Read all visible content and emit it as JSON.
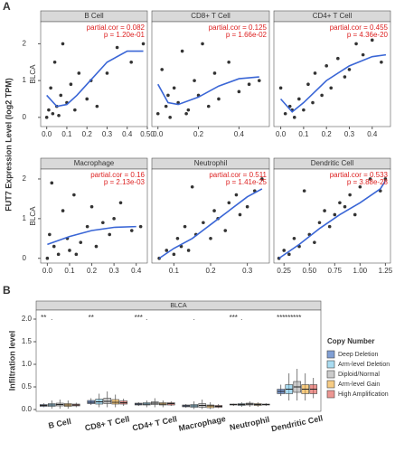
{
  "figure": {
    "panel_a_label": "A",
    "panel_b_label": "B",
    "y_label": "FUT7 Expression Level (log2 TPM)"
  },
  "chart_data": [
    {
      "type": "scatter",
      "title": "B Cell",
      "side_label": "BLCA",
      "annotation": [
        "partial.cor = 0.082",
        "p = 1.20e-01"
      ],
      "color": "#333333",
      "fit_color": "#3a66d6",
      "x": [
        0.01,
        0.02,
        0.03,
        0.04,
        0.05,
        0.06,
        0.07,
        0.08,
        0.1,
        0.12,
        0.14,
        0.16,
        0.2,
        0.22,
        0.25,
        0.3,
        0.35,
        0.42,
        0.48,
        0.0
      ],
      "y": [
        0.2,
        0.8,
        0.1,
        1.5,
        0.3,
        0.05,
        0.6,
        2.0,
        0.4,
        0.9,
        0.2,
        1.2,
        0.5,
        1.0,
        0.3,
        1.2,
        1.9,
        1.5,
        2.0,
        0.0
      ],
      "fit_x": [
        0,
        0.05,
        0.1,
        0.15,
        0.2,
        0.3,
        0.4,
        0.48
      ],
      "fit_y": [
        0.6,
        0.3,
        0.35,
        0.6,
        0.9,
        1.5,
        1.8,
        1.8
      ],
      "xlim": [
        -0.03,
        0.5
      ],
      "ylim": [
        -0.25,
        2.6
      ],
      "xticks": [
        {
          "value": 0,
          "label": "0.0"
        },
        0.1,
        0.2,
        0.3,
        0.4,
        {
          "value": 0.5,
          "label": "0.50"
        }
      ],
      "yticks": [
        0,
        1,
        2
      ]
    },
    {
      "type": "scatter",
      "title": "CD8+ T Cell",
      "annotation": [
        "partial.cor = 0.125",
        "p = 1.66e-02"
      ],
      "color": "#333333",
      "fit_color": "#3a66d6",
      "x": [
        0.0,
        0.02,
        0.04,
        0.06,
        0.08,
        0.1,
        0.12,
        0.15,
        0.18,
        0.2,
        0.22,
        0.25,
        0.28,
        0.3,
        0.35,
        0.4,
        0.45,
        0.5,
        0.05,
        0.14
      ],
      "y": [
        0.1,
        1.3,
        0.3,
        0.0,
        0.8,
        0.4,
        1.8,
        0.2,
        1.0,
        0.6,
        2.0,
        0.3,
        1.2,
        0.5,
        1.5,
        0.7,
        0.9,
        1.0,
        0.6,
        0.1
      ],
      "fit_x": [
        0,
        0.05,
        0.1,
        0.2,
        0.3,
        0.4,
        0.5
      ],
      "fit_y": [
        0.9,
        0.4,
        0.35,
        0.55,
        0.85,
        1.05,
        1.1
      ],
      "xlim": [
        -0.03,
        0.55
      ],
      "ylim": [
        -0.25,
        2.6
      ],
      "xticks": [
        {
          "value": 0,
          "label": "0.0"
        },
        0.2,
        0.4
      ]
    },
    {
      "type": "scatter",
      "title": "CD4+ T Cell",
      "annotation": [
        "partial.cor = 0.455",
        "p = 4.36e-20"
      ],
      "color": "#333333",
      "fit_color": "#3a66d6",
      "x": [
        0.0,
        0.02,
        0.04,
        0.06,
        0.08,
        0.1,
        0.12,
        0.15,
        0.18,
        0.2,
        0.22,
        0.25,
        0.28,
        0.3,
        0.33,
        0.36,
        0.4,
        0.44,
        0.05,
        0.14
      ],
      "y": [
        0.8,
        0.1,
        0.3,
        0.0,
        0.5,
        0.2,
        0.9,
        1.2,
        0.6,
        1.4,
        0.8,
        1.6,
        1.1,
        1.3,
        2.0,
        1.7,
        2.1,
        1.5,
        0.2,
        0.4
      ],
      "fit_x": [
        0,
        0.05,
        0.1,
        0.2,
        0.3,
        0.4,
        0.46
      ],
      "fit_y": [
        0.5,
        0.15,
        0.4,
        1.0,
        1.4,
        1.65,
        1.7
      ],
      "xlim": [
        -0.03,
        0.48
      ],
      "ylim": [
        -0.25,
        2.6
      ],
      "xticks": [
        {
          "value": 0,
          "label": "0.0"
        },
        0.1,
        0.2,
        0.3,
        0.4
      ]
    },
    {
      "type": "scatter",
      "title": "Macrophage",
      "side_label": "BLCA",
      "annotation": [
        "partial.cor = 0.16",
        "p = 2.13e-03"
      ],
      "color": "#333333",
      "fit_color": "#3a66d6",
      "x": [
        0.0,
        0.02,
        0.03,
        0.05,
        0.07,
        0.09,
        0.1,
        0.12,
        0.15,
        0.18,
        0.2,
        0.22,
        0.25,
        0.28,
        0.3,
        0.33,
        0.38,
        0.42,
        0.01,
        0.13
      ],
      "y": [
        0.0,
        1.9,
        0.3,
        0.1,
        1.2,
        0.5,
        0.2,
        1.6,
        0.4,
        0.8,
        1.3,
        0.3,
        0.9,
        0.6,
        1.0,
        1.4,
        0.7,
        0.8,
        0.6,
        0.1
      ],
      "fit_x": [
        0,
        0.1,
        0.2,
        0.3,
        0.4
      ],
      "fit_y": [
        0.35,
        0.55,
        0.7,
        0.78,
        0.8
      ],
      "xlim": [
        -0.03,
        0.45
      ],
      "ylim": [
        -0.12,
        2.25
      ],
      "xticks": [
        {
          "value": 0,
          "label": "0.0"
        },
        0.1,
        0.2,
        0.3,
        0.4
      ],
      "yticks": [
        0,
        1,
        2
      ]
    },
    {
      "type": "scatter",
      "title": "Neutrophil",
      "annotation": [
        "partial.cor = 0.511",
        "p = 1.41e-25"
      ],
      "color": "#333333",
      "fit_color": "#3a66d6",
      "x": [
        0.06,
        0.08,
        0.1,
        0.11,
        0.12,
        0.13,
        0.14,
        0.15,
        0.16,
        0.18,
        0.2,
        0.21,
        0.22,
        0.24,
        0.25,
        0.27,
        0.28,
        0.3,
        0.32,
        0.34
      ],
      "y": [
        0.0,
        0.2,
        0.1,
        0.5,
        0.3,
        0.8,
        0.2,
        1.8,
        0.6,
        0.9,
        0.5,
        1.2,
        1.0,
        0.7,
        1.4,
        1.6,
        1.1,
        1.3,
        1.7,
        2.0
      ],
      "fit_x": [
        0.06,
        0.1,
        0.15,
        0.2,
        0.25,
        0.3,
        0.34
      ],
      "fit_y": [
        0.0,
        0.25,
        0.5,
        0.85,
        1.2,
        1.55,
        1.75
      ],
      "xlim": [
        0.04,
        0.36
      ],
      "ylim": [
        -0.12,
        2.25
      ],
      "xticks": [
        0.1,
        0.2,
        0.3
      ]
    },
    {
      "type": "scatter",
      "title": "Dendritic Cell",
      "annotation": [
        "partial.cor = 0.533",
        "p = 3.88e-28"
      ],
      "color": "#333333",
      "fit_color": "#3a66d6",
      "x": [
        0.2,
        0.25,
        0.3,
        0.35,
        0.4,
        0.45,
        0.5,
        0.55,
        0.6,
        0.65,
        0.7,
        0.75,
        0.8,
        0.85,
        0.9,
        0.95,
        1.0,
        1.1,
        1.2,
        1.25
      ],
      "y": [
        0.0,
        0.2,
        0.1,
        0.5,
        0.3,
        1.7,
        0.6,
        0.4,
        0.9,
        1.2,
        0.8,
        1.1,
        1.4,
        1.3,
        1.6,
        1.1,
        1.8,
        2.0,
        1.7,
        2.0
      ],
      "fit_x": [
        0.2,
        0.4,
        0.6,
        0.8,
        1.0,
        1.2,
        1.25
      ],
      "fit_y": [
        0.0,
        0.35,
        0.75,
        1.1,
        1.4,
        1.75,
        1.95
      ],
      "xlim": [
        0.15,
        1.3
      ],
      "ylim": [
        -0.12,
        2.25
      ],
      "xticks": [
        0.25,
        {
          "value": 0.5,
          "label": "0.50"
        },
        0.75,
        {
          "value": 1,
          "label": "1.00"
        },
        1.25
      ]
    },
    {
      "type": "box",
      "title": "BLCA",
      "y_label": "Infiltration level",
      "legend_title": "Copy Number",
      "categories": [
        "B Cell",
        "CD8+ T Cell",
        "CD4+ T Cell",
        "Macrophage",
        "Neutrophil",
        "Dendritic Cell"
      ],
      "ylim": [
        -0.04,
        2.2
      ],
      "yticks": [
        {
          "value": 0,
          "label": "0.0"
        },
        0.5,
        {
          "value": 1,
          "label": "1.0"
        },
        1.5,
        {
          "value": 2,
          "label": "2.0"
        }
      ],
      "series": [
        {
          "name": "Deep Deletion",
          "color": "#2b5fb8",
          "stars": [
            "**",
            "**",
            "***",
            null,
            "***",
            "***"
          ],
          "values": [
            [
              0.05,
              0.07,
              0.09,
              0.11,
              0.14
            ],
            [
              0.1,
              0.13,
              0.16,
              0.2,
              0.25
            ],
            [
              0.08,
              0.1,
              0.12,
              0.14,
              0.16
            ],
            [
              0.04,
              0.06,
              0.08,
              0.1,
              0.12
            ],
            [
              0.08,
              0.1,
              0.11,
              0.12,
              0.13
            ],
            [
              0.3,
              0.35,
              0.4,
              0.45,
              0.55
            ]
          ]
        },
        {
          "name": "Arm-level Deletion",
          "color": "#6fc3e8",
          "stars": [
            ".",
            null,
            ".",
            ".",
            ".",
            "***"
          ],
          "values": [
            [
              0.02,
              0.07,
              0.1,
              0.13,
              0.2
            ],
            [
              0.05,
              0.12,
              0.17,
              0.23,
              0.35
            ],
            [
              0.05,
              0.1,
              0.12,
              0.15,
              0.2
            ],
            [
              0.01,
              0.05,
              0.08,
              0.11,
              0.18
            ],
            [
              0.06,
              0.09,
              0.11,
              0.13,
              0.16
            ],
            [
              0.2,
              0.35,
              0.45,
              0.55,
              0.8
            ]
          ]
        },
        {
          "name": "Diploid/Normal",
          "color": "#a8a8a8",
          "stars": [
            null,
            null,
            null,
            null,
            null,
            "***"
          ],
          "values": [
            [
              0.02,
              0.08,
              0.11,
              0.14,
              0.22
            ],
            [
              0.05,
              0.13,
              0.18,
              0.25,
              0.4
            ],
            [
              0.05,
              0.11,
              0.14,
              0.17,
              0.25
            ],
            [
              0.01,
              0.05,
              0.09,
              0.13,
              0.22
            ],
            [
              0.06,
              0.1,
              0.12,
              0.14,
              0.18
            ],
            [
              0.2,
              0.38,
              0.5,
              0.62,
              0.9
            ]
          ]
        },
        {
          "name": "Arm-level Gain",
          "color": "#f0a830",
          "stars": [
            null,
            null,
            null,
            null,
            null,
            null
          ],
          "values": [
            [
              0.02,
              0.07,
              0.1,
              0.13,
              0.2
            ],
            [
              0.05,
              0.12,
              0.16,
              0.22,
              0.33
            ],
            [
              0.05,
              0.1,
              0.12,
              0.15,
              0.2
            ],
            [
              0.01,
              0.04,
              0.08,
              0.1,
              0.16
            ],
            [
              0.06,
              0.09,
              0.11,
              0.13,
              0.16
            ],
            [
              0.2,
              0.35,
              0.45,
              0.55,
              0.8
            ]
          ]
        },
        {
          "name": "High Amplification",
          "color": "#e0504a",
          "stars": [
            null,
            null,
            null,
            null,
            null,
            null
          ],
          "values": [
            [
              0.05,
              0.08,
              0.1,
              0.12,
              0.15
            ],
            [
              0.08,
              0.12,
              0.15,
              0.19,
              0.24
            ],
            [
              0.08,
              0.1,
              0.13,
              0.15,
              0.18
            ],
            [
              0.03,
              0.05,
              0.07,
              0.09,
              0.12
            ],
            [
              0.08,
              0.1,
              0.11,
              0.12,
              0.14
            ],
            [
              0.25,
              0.35,
              0.45,
              0.55,
              0.7
            ]
          ]
        }
      ]
    }
  ]
}
